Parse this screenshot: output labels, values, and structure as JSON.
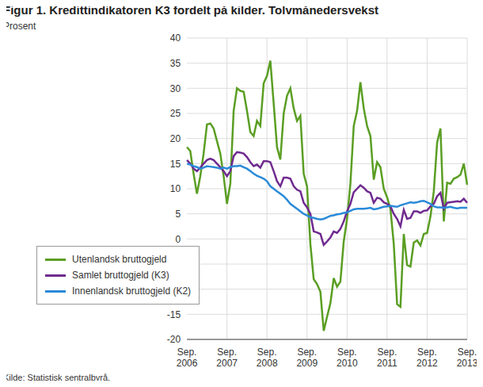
{
  "chart_data": {
    "type": "line",
    "title": "Figur 1. Kredittindikatoren K3 fordelt på kilder. Tolvmånedersvekst",
    "y_label": "Prosent",
    "source": "Kilde: Statistisk sentralbyrå.",
    "categories": [
      "Sep. 2006",
      null,
      null,
      null,
      null,
      null,
      null,
      null,
      null,
      null,
      null,
      null,
      "Sep. 2007",
      null,
      null,
      null,
      null,
      null,
      null,
      null,
      null,
      null,
      null,
      null,
      "Sep. 2008",
      null,
      null,
      null,
      null,
      null,
      null,
      null,
      null,
      null,
      null,
      null,
      "Sep. 2009",
      null,
      null,
      null,
      null,
      null,
      null,
      null,
      null,
      null,
      null,
      null,
      "Sep. 2010",
      null,
      null,
      null,
      null,
      null,
      null,
      null,
      null,
      null,
      null,
      null,
      "Sep. 2011",
      null,
      null,
      null,
      null,
      null,
      null,
      null,
      null,
      null,
      null,
      null,
      "Sep. 2012",
      null,
      null,
      null,
      null,
      null,
      null,
      null,
      null,
      null,
      null,
      null,
      "Sep. 2013"
    ],
    "series": [
      {
        "name": "Utenlandsk bruttogjeld",
        "color": "#5a9e23",
        "values": [
          18.3,
          17.5,
          13,
          9,
          12.5,
          17,
          22.8,
          23,
          22,
          19.5,
          17,
          12.5,
          7,
          11,
          25.5,
          30,
          29.5,
          29.3,
          25.5,
          21.3,
          20.5,
          23.5,
          22.5,
          31,
          32.5,
          35.5,
          27,
          18.3,
          15.8,
          25,
          28.5,
          30,
          26,
          23.5,
          24.5,
          13,
          10.5,
          -1,
          -8,
          -9,
          -10.5,
          -18.3,
          -15.5,
          -12.8,
          -7.8,
          -9.5,
          -8.5,
          -0.5,
          4,
          11,
          22.5,
          25.5,
          31.2,
          26,
          22.5,
          20.5,
          11.8,
          15.3,
          14.3,
          10,
          8.3,
          6,
          -1,
          -13,
          -13.5,
          1,
          -5.2,
          -5.5,
          -0.7,
          -0.3,
          -1.3,
          1,
          1.2,
          4.5,
          9.5,
          19.2,
          22,
          3.5,
          11.2,
          11,
          12,
          12.3,
          12.8,
          15,
          10.8
        ]
      },
      {
        "name": "Samlet bruttogjeld (K3)",
        "color": "#6f2a8f",
        "values": [
          15.7,
          15,
          14,
          13.5,
          14.2,
          15,
          15.7,
          16,
          15.7,
          15,
          14.3,
          13.5,
          12.5,
          13.5,
          16.5,
          17.3,
          17.2,
          17,
          16.3,
          15.3,
          14.5,
          14.8,
          14.2,
          15.5,
          15.5,
          15.3,
          13.5,
          11.5,
          10.5,
          12.2,
          12.2,
          12,
          10.5,
          9.8,
          9.5,
          7.2,
          6.3,
          5,
          1.5,
          1.3,
          1,
          -1.2,
          -0.5,
          0.3,
          1.5,
          1.2,
          2,
          3.5,
          5.5,
          7,
          9.3,
          10,
          10.7,
          10.2,
          9.5,
          9.2,
          7.2,
          8.2,
          8,
          7.3,
          7,
          6.5,
          5,
          4,
          2.5,
          5.8,
          4,
          4.2,
          5.5,
          5.5,
          5.2,
          5.6,
          5.7,
          6.5,
          7,
          8.5,
          9.2,
          6,
          7.2,
          7.3,
          7.4,
          7.5,
          7.4,
          8,
          7.2
        ]
      },
      {
        "name": "Innenlandsk bruttogjeld (K2)",
        "color": "#2a8ad8",
        "values": [
          15,
          14.8,
          14.5,
          14.3,
          14,
          14.2,
          14.5,
          14.4,
          14.3,
          14.2,
          14,
          14.2,
          14,
          14.3,
          14.5,
          14.5,
          14.6,
          14.3,
          14,
          13.5,
          13,
          12.6,
          12.3,
          12,
          11.5,
          10.5,
          10,
          9.5,
          9,
          8.5,
          7.8,
          7,
          6.5,
          6,
          5.5,
          5,
          4.7,
          4.3,
          4.2,
          4,
          3.9,
          4,
          4.3,
          4.6,
          4.7,
          4.9,
          5,
          5.2,
          5.3,
          5.6,
          5.9,
          6,
          6,
          6,
          6.1,
          6.2,
          5.9,
          6,
          6.2,
          6.4,
          6.5,
          6.6,
          6.5,
          6.4,
          6.7,
          6.9,
          7.1,
          7.3,
          7.2,
          7.3,
          7.5,
          7.6,
          7.3,
          7,
          6.5,
          6.3,
          6.3,
          6.2,
          6.3,
          6.4,
          6.2,
          6.1,
          6.2,
          6.2,
          6.2
        ]
      }
    ],
    "ylim": [
      -20,
      40
    ],
    "yticks": [
      -20,
      -15,
      -10,
      -5,
      0,
      5,
      10,
      15,
      20,
      25,
      30,
      35,
      40
    ],
    "grid": true,
    "legend": "lower left"
  }
}
